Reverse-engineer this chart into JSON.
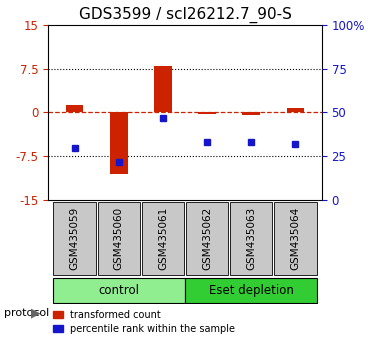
{
  "title": "GDS3599 / scl26212.7_90-S",
  "samples": [
    "GSM435059",
    "GSM435060",
    "GSM435061",
    "GSM435062",
    "GSM435063",
    "GSM435064"
  ],
  "red_values": [
    1.2,
    -10.5,
    8.0,
    -0.3,
    -0.5,
    0.8
  ],
  "blue_values_pct": [
    30,
    22,
    47,
    33,
    33,
    32
  ],
  "ylim_left": [
    -15,
    15
  ],
  "ylim_right": [
    0,
    100
  ],
  "yticks_left": [
    -15,
    -7.5,
    0,
    7.5,
    15
  ],
  "yticks_right": [
    0,
    25,
    50,
    75,
    100
  ],
  "ytick_labels_left": [
    "-15",
    "-7.5",
    "0",
    "7.5",
    "15"
  ],
  "ytick_labels_right": [
    "0",
    "25",
    "50",
    "75",
    "100%"
  ],
  "hlines": [
    7.5,
    -7.5
  ],
  "red_hline": 0,
  "groups": [
    {
      "label": "control",
      "indices": [
        0,
        1,
        2
      ],
      "color": "#90EE90"
    },
    {
      "label": "Eset depletion",
      "indices": [
        3,
        4,
        5
      ],
      "color": "#32CD32"
    }
  ],
  "protocol_label": "protocol",
  "bar_color": "#CC2200",
  "dot_color": "#1515CC",
  "bg_color": "#FFFFFF",
  "plot_bg": "#FFFFFF",
  "sample_box_color": "#C8C8C8",
  "legend_red_label": "transformed count",
  "legend_blue_label": "percentile rank within the sample",
  "title_fontsize": 11,
  "axis_fontsize": 9,
  "tick_fontsize": 8.5
}
